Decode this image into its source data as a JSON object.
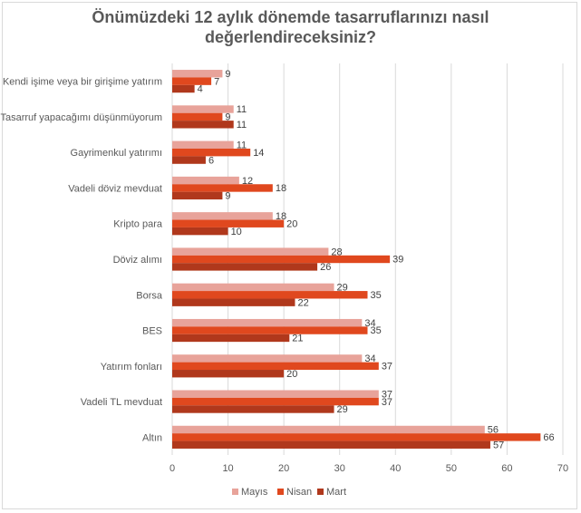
{
  "chart_data": {
    "type": "bar",
    "orientation": "horizontal",
    "title_lines": [
      "Önümüzdeki 12 aylık dönemde tasarruflarınızı nasıl",
      "değerlendireceksiniz?"
    ],
    "categories": [
      "Kendi işime veya bir girişime yatırım",
      "Tasarruf yapacağımı düşünmüyorum",
      "Gayrimenkul yatırımı",
      "Vadeli döviz mevduat",
      "Kripto para",
      "Döviz alımı",
      "Borsa",
      "BES",
      "Yatırım fonları",
      "Vadeli TL mevduat",
      "Altın"
    ],
    "series": [
      {
        "name": "Mayıs",
        "color": "#e8a39a",
        "values": [
          9,
          11,
          11,
          12,
          18,
          28,
          29,
          34,
          34,
          37,
          56
        ]
      },
      {
        "name": "Nisan",
        "color": "#e0481e",
        "values": [
          7,
          9,
          14,
          18,
          20,
          39,
          35,
          35,
          37,
          37,
          66
        ]
      },
      {
        "name": "Mart",
        "color": "#b0381c",
        "values": [
          4,
          11,
          6,
          9,
          10,
          26,
          22,
          21,
          20,
          29,
          57
        ]
      }
    ],
    "xlim": [
      0,
      70
    ],
    "xticks": [
      0,
      10,
      20,
      30,
      40,
      50,
      60,
      70
    ],
    "gridlines": true,
    "legend_position": "bottom"
  }
}
